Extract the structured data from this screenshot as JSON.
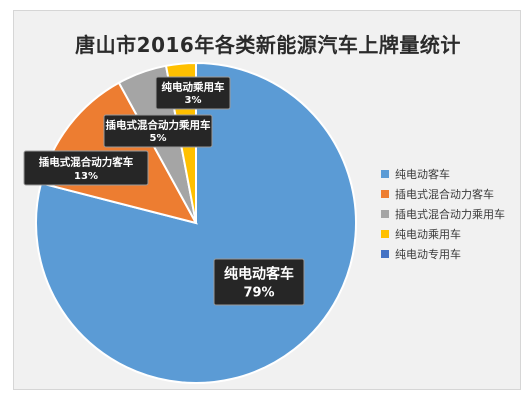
{
  "chart_data": {
    "type": "pie",
    "title": "唐山市2016年各类新能源汽车上牌量统计",
    "slices": [
      {
        "name": "纯电动客车",
        "value": 79,
        "label": "79%",
        "color": "#5b9bd5"
      },
      {
        "name": "插电式混合动力客车",
        "value": 13,
        "label": "13%",
        "color": "#ed7d31"
      },
      {
        "name": "插电式混合动力乘用车",
        "value": 5,
        "label": "5%",
        "color": "#a5a5a5"
      },
      {
        "name": "纯电动乘用车",
        "value": 3,
        "label": "3%",
        "color": "#ffc000"
      },
      {
        "name": "纯电动专用车",
        "value": 0,
        "label": "",
        "color": "#4472c4"
      }
    ],
    "legend_position": "right",
    "start_angle": "top",
    "direction": "clockwise"
  }
}
